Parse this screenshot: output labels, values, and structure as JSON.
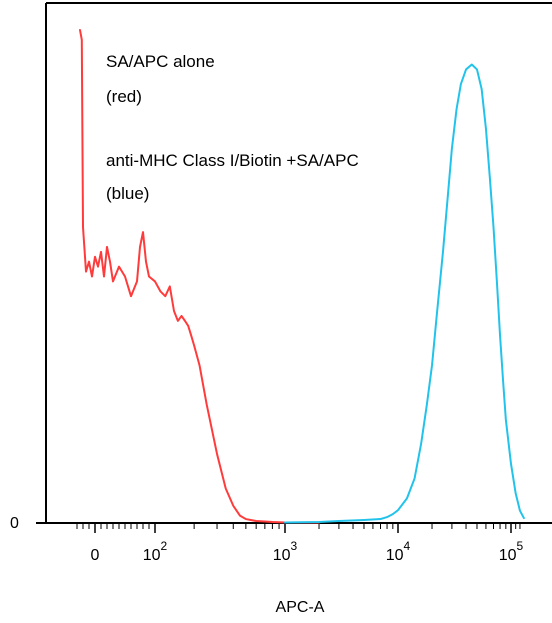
{
  "chart_data": {
    "type": "line",
    "title": "",
    "xlabel": "APC-A",
    "ylabel": "",
    "x_scale": "biexponential",
    "xlim": [
      -30,
      130000
    ],
    "ylim": [
      0,
      100
    ],
    "y_tick_labels": [
      {
        "value": 0,
        "label": "0"
      }
    ],
    "x_tick_labels": [
      {
        "value": 0,
        "base": "0",
        "exp": ""
      },
      {
        "value": 100,
        "base": "10",
        "exp": "2"
      },
      {
        "value": 1000,
        "base": "10",
        "exp": "3"
      },
      {
        "value": 10000,
        "base": "10",
        "exp": "4"
      },
      {
        "value": 100000,
        "base": "10",
        "exp": "5"
      }
    ],
    "annotations": [
      {
        "id": "red-label-1",
        "text": "SA/APC alone"
      },
      {
        "id": "red-label-2",
        "text": "(red)"
      },
      {
        "id": "blue-label-1",
        "text": "anti-MHC Class I/Biotin +SA/APC"
      },
      {
        "id": "blue-label-2",
        "text": "(blue)"
      }
    ],
    "series": [
      {
        "color": "#ff3b3b",
        "x": [
          -25,
          -22,
          -20,
          -15,
          -10,
          -5,
          0,
          5,
          10,
          15,
          20,
          25,
          30,
          40,
          50,
          60,
          70,
          75,
          80,
          85,
          90,
          100,
          110,
          120,
          130,
          140,
          150,
          160,
          170,
          180,
          190,
          200,
          220,
          250,
          300,
          350,
          400,
          450,
          500,
          600,
          700,
          800,
          1000,
          1500,
          2000
        ],
        "y": [
          100,
          98,
          60,
          51,
          53,
          50,
          54,
          52,
          55,
          50,
          56,
          53,
          49,
          52,
          50,
          46,
          49,
          56,
          59,
          53,
          50,
          49,
          47,
          46,
          48,
          43,
          41,
          42,
          41,
          40,
          38,
          36,
          32,
          24,
          14,
          7,
          3.5,
          1.5,
          0.8,
          0.4,
          0.3,
          0.2,
          0.1,
          0.1,
          0.1
        ]
      },
      {
        "color": "#22c3ea",
        "x": [
          1000,
          2000,
          3000,
          5000,
          7000,
          8000,
          9000,
          10000,
          12000,
          14000,
          16000,
          18000,
          20000,
          22000,
          25000,
          28000,
          30000,
          33000,
          36000,
          40000,
          45000,
          50000,
          55000,
          60000,
          65000,
          70000,
          75000,
          80000,
          85000,
          90000,
          100000,
          110000,
          120000,
          130000
        ],
        "y": [
          0.1,
          0.2,
          0.4,
          0.6,
          0.8,
          1.2,
          1.8,
          2.6,
          5,
          9,
          16,
          24,
          32,
          42,
          55,
          68,
          76,
          84,
          89,
          92,
          93,
          92,
          88,
          80,
          70,
          60,
          49,
          38,
          29,
          21,
          12,
          6,
          2.5,
          1
        ]
      }
    ]
  }
}
